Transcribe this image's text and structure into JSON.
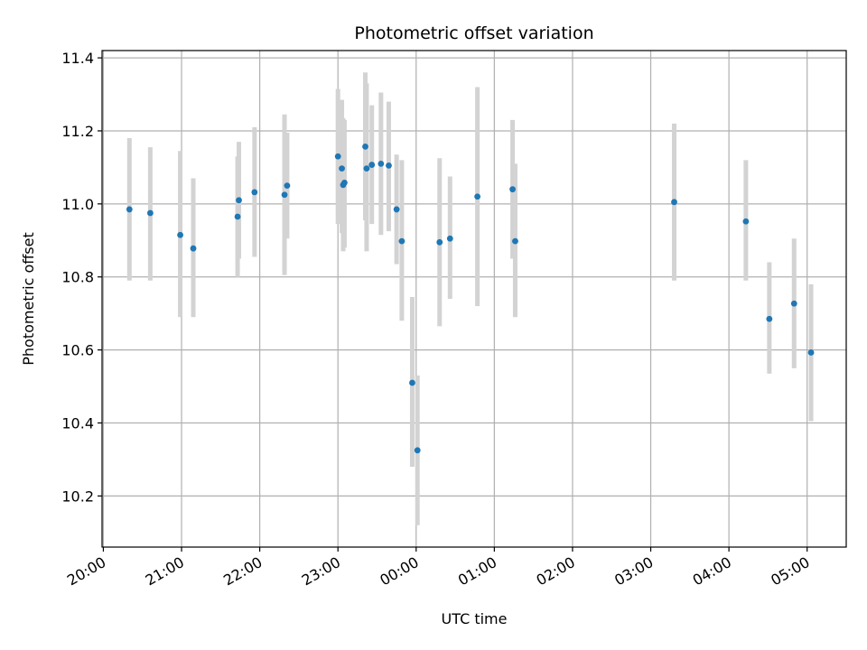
{
  "chart_data": {
    "type": "scatter",
    "title": "Photometric offset variation",
    "xlabel": "UTC time",
    "ylabel": "Photometric offset",
    "x_ticks": [
      "20:00",
      "21:00",
      "22:00",
      "23:00",
      "00:00",
      "01:00",
      "02:00",
      "03:00",
      "04:00",
      "05:00"
    ],
    "y_ticks": [
      "10.2",
      "10.4",
      "10.6",
      "10.8",
      "11.0",
      "11.2",
      "11.4"
    ],
    "xlim": [
      "19:59",
      "05:30"
    ],
    "ylim": [
      10.06,
      11.42
    ],
    "grid": true,
    "colors": {
      "point": "#1f77b4",
      "errorbar": "#d3d3d3",
      "grid": "#b0b0b0"
    },
    "points": [
      {
        "t": "20:20",
        "y": 10.985,
        "lo": 10.79,
        "hi": 11.18
      },
      {
        "t": "20:36",
        "y": 10.975,
        "lo": 10.79,
        "hi": 11.155
      },
      {
        "t": "20:59",
        "y": 10.915,
        "lo": 10.69,
        "hi": 11.145
      },
      {
        "t": "21:09",
        "y": 10.878,
        "lo": 10.69,
        "hi": 11.07
      },
      {
        "t": "21:43",
        "y": 10.965,
        "lo": 10.8,
        "hi": 11.13
      },
      {
        "t": "21:44",
        "y": 11.01,
        "lo": 10.85,
        "hi": 11.17
      },
      {
        "t": "21:56",
        "y": 11.032,
        "lo": 10.855,
        "hi": 11.21
      },
      {
        "t": "22:19",
        "y": 11.025,
        "lo": 10.805,
        "hi": 11.245
      },
      {
        "t": "22:21",
        "y": 11.05,
        "lo": 10.905,
        "hi": 11.195
      },
      {
        "t": "23:00",
        "y": 11.13,
        "lo": 10.945,
        "hi": 11.315
      },
      {
        "t": "23:03",
        "y": 11.097,
        "lo": 10.92,
        "hi": 11.285
      },
      {
        "t": "23:04",
        "y": 11.052,
        "lo": 10.87,
        "hi": 11.235
      },
      {
        "t": "23:05",
        "y": 11.058,
        "lo": 10.88,
        "hi": 11.23
      },
      {
        "t": "23:21",
        "y": 11.157,
        "lo": 10.955,
        "hi": 11.36
      },
      {
        "t": "23:22",
        "y": 11.097,
        "lo": 10.87,
        "hi": 11.33
      },
      {
        "t": "23:26",
        "y": 11.107,
        "lo": 10.945,
        "hi": 11.27
      },
      {
        "t": "23:33",
        "y": 11.11,
        "lo": 10.915,
        "hi": 11.305
      },
      {
        "t": "23:39",
        "y": 11.105,
        "lo": 10.925,
        "hi": 11.28
      },
      {
        "t": "23:45",
        "y": 10.985,
        "lo": 10.835,
        "hi": 11.135
      },
      {
        "t": "23:49",
        "y": 10.898,
        "lo": 10.68,
        "hi": 11.12
      },
      {
        "t": "23:57",
        "y": 10.51,
        "lo": 10.28,
        "hi": 10.745
      },
      {
        "t": "00:01",
        "y": 10.325,
        "lo": 10.12,
        "hi": 10.53
      },
      {
        "t": "00:18",
        "y": 10.895,
        "lo": 10.665,
        "hi": 11.125
      },
      {
        "t": "00:26",
        "y": 10.905,
        "lo": 10.74,
        "hi": 11.075
      },
      {
        "t": "00:47",
        "y": 11.02,
        "lo": 10.72,
        "hi": 11.32
      },
      {
        "t": "01:14",
        "y": 11.04,
        "lo": 10.85,
        "hi": 11.23
      },
      {
        "t": "01:16",
        "y": 10.898,
        "lo": 10.69,
        "hi": 11.11
      },
      {
        "t": "03:18",
        "y": 11.005,
        "lo": 10.79,
        "hi": 11.22
      },
      {
        "t": "04:13",
        "y": 10.952,
        "lo": 10.79,
        "hi": 11.12
      },
      {
        "t": "04:31",
        "y": 10.685,
        "lo": 10.535,
        "hi": 10.84
      },
      {
        "t": "04:50",
        "y": 10.727,
        "lo": 10.55,
        "hi": 10.905
      },
      {
        "t": "05:03",
        "y": 10.593,
        "lo": 10.405,
        "hi": 10.78
      }
    ]
  }
}
